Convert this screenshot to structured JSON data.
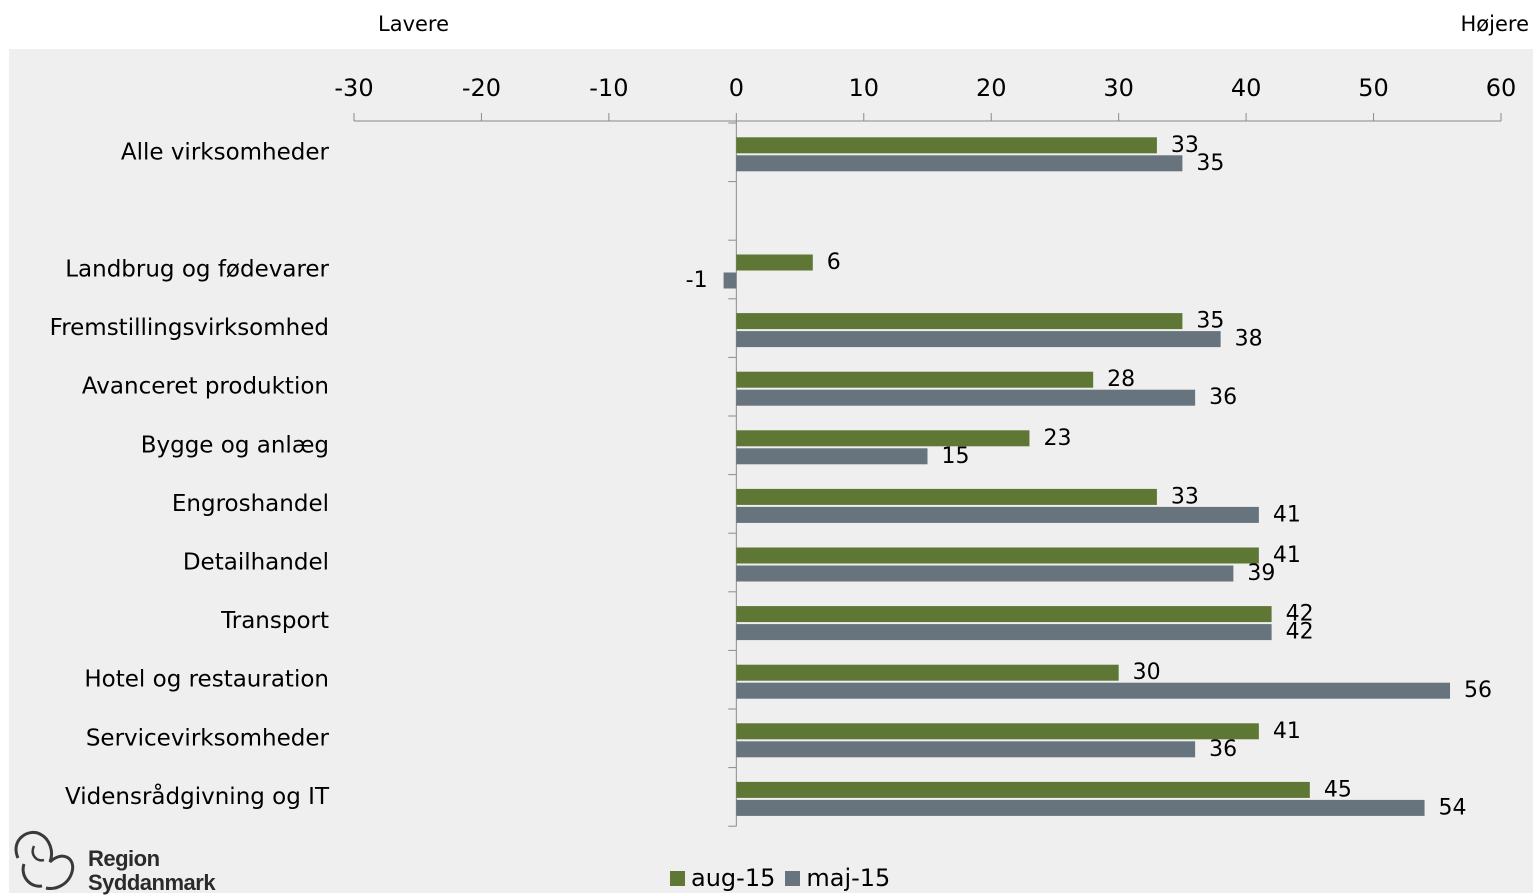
{
  "header": {
    "left_label": "Lavere",
    "right_label": "Højere"
  },
  "logo": {
    "line1": "Region",
    "line2": "Syddanmark"
  },
  "colors": {
    "aug": "#5e7734",
    "maj": "#67737d",
    "background": "#efefef",
    "axis": "#8a8a8a"
  },
  "chart_data": {
    "type": "bar",
    "orientation": "horizontal",
    "xlim": [
      -30,
      60
    ],
    "ticks": [
      -30,
      -20,
      -10,
      0,
      10,
      20,
      30,
      40,
      50,
      60
    ],
    "tick_labels": [
      "-30",
      "-20",
      "-10",
      "0",
      "10",
      "20",
      "30",
      "40",
      "50",
      "60"
    ],
    "categories": [
      "Alle virksomheder",
      "",
      "Landbrug og fødevarer",
      "Fremstillingsvirksomhed",
      "Avanceret produktion",
      "Bygge og anlæg",
      "Engroshandel",
      "Detailhandel",
      "Transport",
      "Hotel og restauration",
      "Servicevirksomheder",
      "Vidensrådgivning og IT"
    ],
    "series": [
      {
        "name": "aug-15",
        "color": "#5e7734",
        "values": [
          33,
          null,
          6,
          35,
          28,
          23,
          33,
          41,
          42,
          30,
          41,
          45
        ]
      },
      {
        "name": "maj-15",
        "color": "#67737d",
        "values": [
          35,
          null,
          -1,
          38,
          36,
          15,
          41,
          39,
          42,
          56,
          36,
          54
        ]
      }
    ],
    "legend_position": "bottom-center",
    "grid": false
  }
}
